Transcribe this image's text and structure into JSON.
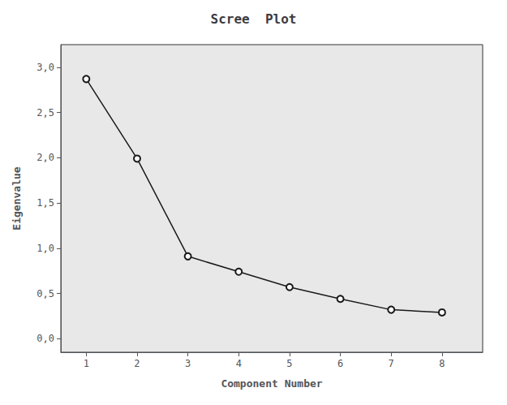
{
  "chart_data": {
    "type": "line",
    "title": "Scree  Plot",
    "xlabel": "Component Number",
    "ylabel": "Eigenvalue",
    "x": [
      1,
      2,
      3,
      4,
      5,
      6,
      7,
      8
    ],
    "values": [
      2.87,
      1.99,
      0.91,
      0.74,
      0.57,
      0.44,
      0.32,
      0.29
    ],
    "xlim": [
      0.5,
      8.8
    ],
    "xticks": [
      1,
      2,
      3,
      4,
      5,
      6,
      7,
      8
    ],
    "ylim": [
      -0.15,
      3.25
    ],
    "yticks": [
      {
        "value": 0.0,
        "label": "0,0"
      },
      {
        "value": 0.5,
        "label": "0,5"
      },
      {
        "value": 1.0,
        "label": "1,0"
      },
      {
        "value": 1.5,
        "label": "1,5"
      },
      {
        "value": 2.0,
        "label": "2,0"
      },
      {
        "value": 2.5,
        "label": "2,5"
      },
      {
        "value": 3.0,
        "label": "3,0"
      }
    ],
    "color": "#1a1a1a",
    "marker": "circle",
    "grid": false
  }
}
